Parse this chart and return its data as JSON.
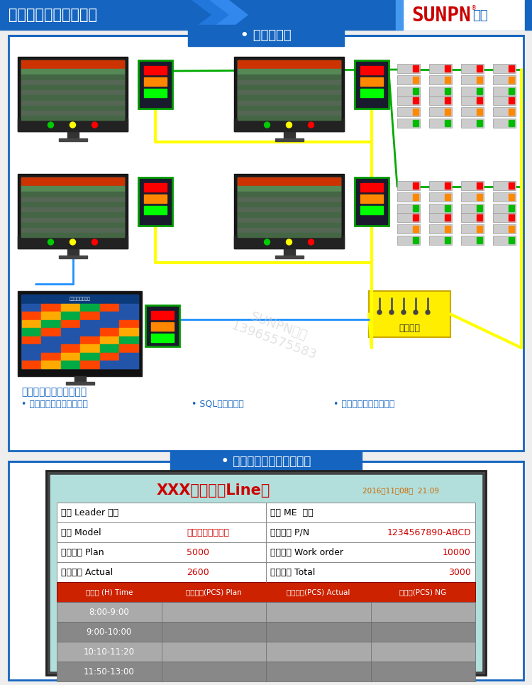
{
  "bg_color": "#EEEEEE",
  "header_bg": "#1565C0",
  "header_text": "液晶看板应用方案展示",
  "section1_title": "• 系统拓扑图",
  "section2_title": "• 产线显示端软件界面要求",
  "border_color": "#1565C0",
  "title_box_color": "#1565C0",
  "yellow_wire": "#FFFF00",
  "green_wire": "#00AA00",
  "blue_wire": "#1E90FF",
  "network_text": "局域网络",
  "data_text1": "数据通过局域网络连接：",
  "bullet1": "• 产线显示端，数据采集端",
  "bullet2": "• SQL数据服务端",
  "bullet3": "• 办公室人员后台操作端",
  "watermark1": "SUNPN讯鹏",
  "watermark2": "13965575583",
  "table_title": "XXX生产线（Line）",
  "table_date": "2016年11月08日  21:09",
  "table_screen_bg": "#B2DFDB",
  "table_header_bg": "#CC2200",
  "row1_label_l": "班长 Leader 人名",
  "row1_label_r": "生技 ME  人名",
  "row2_l_black": "产品 Model",
  "row2_l_red": "显示八个以内汉字",
  "row2_r_black": "生产料号 P/N",
  "row2_r_red": "1234567890-ABCD",
  "row3_l_black": "计划产量 Plan",
  "row3_l_red": "5000",
  "row3_r_black": "工单数量 Work order",
  "row3_r_red": "10000",
  "row4_l_black": "实际产量 Actual",
  "row4_l_red": "2600",
  "row4_r_black": "累计产量 Total",
  "row4_r_red": "3000",
  "col_headers": [
    "时间段 (H) Time",
    "生产目标(PCS) Plan",
    "实际产量(PCS) Actual",
    "不良数(PCS) NG"
  ],
  "time_rows": [
    "8:00-9:00",
    "9:00-10:00",
    "10:10-11:20",
    "11:50-13:00"
  ]
}
